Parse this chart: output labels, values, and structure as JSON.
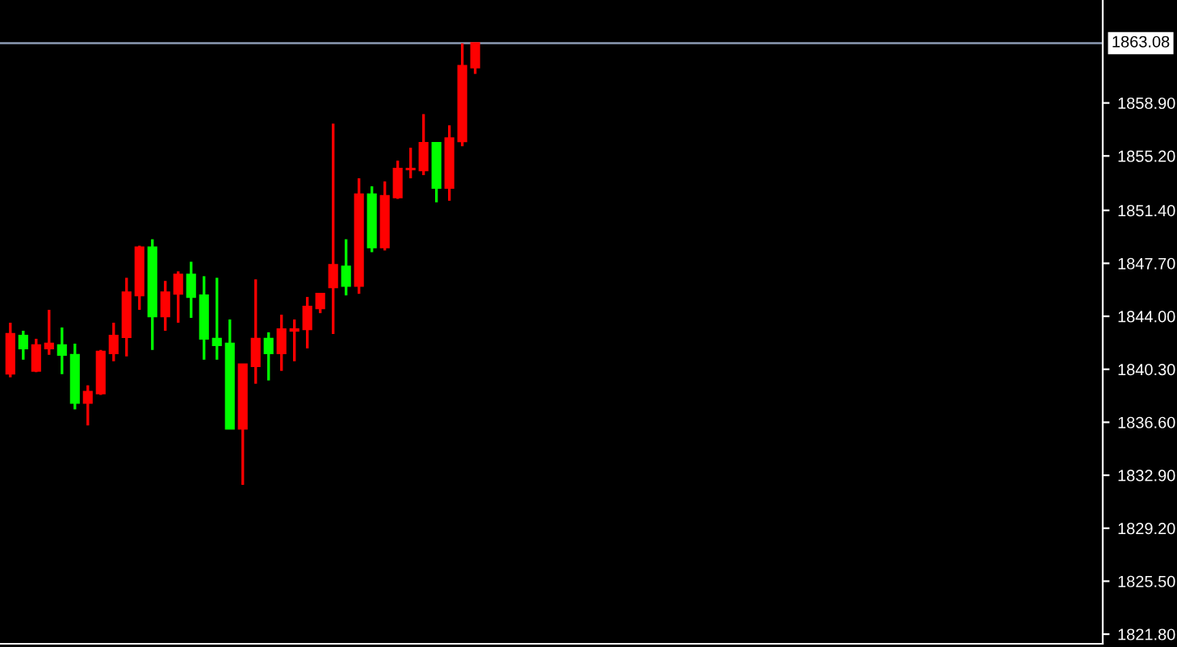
{
  "chart_data": {
    "type": "candlestick",
    "categories": [
      null,
      null,
      null,
      null,
      null,
      null,
      null,
      null,
      null,
      null,
      null,
      null,
      null,
      null,
      null,
      null,
      null,
      null,
      null,
      null,
      null,
      null,
      null,
      null,
      null,
      null,
      null,
      null,
      null,
      null,
      null,
      null,
      null,
      null,
      null,
      null,
      null,
      null,
      null,
      null,
      null,
      null,
      null,
      null,
      null,
      null,
      null,
      null,
      null,
      null,
      null,
      null,
      null,
      null,
      null,
      null,
      null,
      null,
      null,
      null,
      null,
      null,
      null,
      null,
      null,
      null,
      null,
      null,
      null,
      null,
      null,
      null,
      null,
      null,
      null,
      null,
      null,
      null,
      null,
      null,
      null,
      null,
      null,
      null,
      null
    ],
    "ohlc": [
      [
        1840.0,
        1843.55,
        1839.74,
        1842.77
      ],
      [
        1842.65,
        1842.99,
        1840.97,
        1841.76
      ],
      [
        1840.19,
        1842.43,
        1840.1,
        1841.98
      ],
      [
        1841.76,
        1844.45,
        1841.31,
        1842.09
      ],
      [
        1841.98,
        1843.22,
        1839.96,
        1841.31
      ],
      [
        1841.31,
        1842.09,
        1837.5,
        1837.95
      ],
      [
        1837.95,
        1839.18,
        1836.38,
        1838.73
      ],
      [
        1838.62,
        1841.65,
        1838.51,
        1841.53
      ],
      [
        1841.42,
        1843.55,
        1840.86,
        1842.65
      ],
      [
        1842.54,
        1846.69,
        1841.2,
        1845.68
      ],
      [
        1845.46,
        1848.93,
        1844.45,
        1848.82
      ],
      [
        1848.82,
        1849.38,
        1841.65,
        1844.0
      ],
      [
        1844.0,
        1846.47,
        1842.99,
        1845.68
      ],
      [
        1845.57,
        1847.14,
        1843.55,
        1846.91
      ],
      [
        1846.91,
        1847.81,
        1843.89,
        1845.35
      ],
      [
        1845.46,
        1846.8,
        1840.97,
        1842.43
      ],
      [
        1842.43,
        1846.69,
        1840.97,
        1841.98
      ],
      [
        1842.09,
        1843.78,
        1836.15,
        1836.15
      ],
      [
        1836.15,
        1840.64,
        1832.23,
        1840.64
      ],
      [
        1840.52,
        1846.58,
        1839.29,
        1842.43
      ],
      [
        1842.43,
        1842.88,
        1839.52,
        1841.42
      ],
      [
        1841.42,
        1844.11,
        1840.19,
        1843.1
      ],
      [
        1842.99,
        1843.78,
        1840.86,
        1843.1
      ],
      [
        1843.1,
        1845.35,
        1841.76,
        1844.67
      ],
      [
        1844.56,
        1845.57,
        1844.22,
        1845.57
      ],
      [
        1846.02,
        1857.45,
        1842.77,
        1847.59
      ],
      [
        1847.48,
        1849.38,
        1845.46,
        1846.13
      ],
      [
        1846.13,
        1853.64,
        1845.57,
        1852.52
      ],
      [
        1852.52,
        1853.08,
        1848.48,
        1848.82
      ],
      [
        1848.82,
        1853.42,
        1848.6,
        1852.41
      ],
      [
        1852.3,
        1854.87,
        1852.2,
        1854.31
      ],
      [
        1854.26,
        1855.77,
        1853.64,
        1854.31
      ],
      [
        1854.2,
        1858.12,
        1853.86,
        1856.11
      ],
      [
        1856.11,
        1856.11,
        1851.96,
        1852.97
      ],
      [
        1852.97,
        1857.34,
        1852.07,
        1856.44
      ],
      [
        1856.22,
        1863.06,
        1855.88,
        1861.49
      ],
      [
        1861.38,
        1863.08,
        1860.93,
        1863.08
      ],
      null,
      null,
      null,
      null,
      null,
      null,
      null,
      null,
      null,
      null,
      null,
      null,
      null,
      null,
      null,
      null,
      null,
      null,
      null,
      null,
      null,
      null,
      null,
      null,
      null,
      null,
      null,
      null,
      null,
      null,
      null,
      null,
      null,
      null,
      null,
      null,
      null,
      null,
      null,
      null,
      null,
      null,
      null,
      null,
      null,
      null,
      null,
      null
    ],
    "colors": [
      "#ff0000",
      "#00ff00",
      "#ff0000",
      "#ff0000",
      "#00ff00",
      "#00ff00",
      "#ff0000",
      "#ff0000",
      "#ff0000",
      "#ff0000",
      "#ff0000",
      "#00ff00",
      "#ff0000",
      "#ff0000",
      "#00ff00",
      "#00ff00",
      "#00ff00",
      "#00ff00",
      "#ff0000",
      "#ff0000",
      "#00ff00",
      "#ff0000",
      "#ff0000",
      "#ff0000",
      "#ff0000",
      "#ff0000",
      "#00ff00",
      "#ff0000",
      "#00ff00",
      "#ff0000",
      "#ff0000",
      "#ff0000",
      "#ff0000",
      "#00ff00",
      "#ff0000",
      "#ff0000",
      "#ff0000",
      null,
      null,
      null,
      null,
      null,
      null,
      null,
      null,
      null,
      null,
      null,
      null,
      null,
      null,
      null,
      null,
      null,
      null,
      null,
      null,
      null,
      null,
      null,
      null,
      null,
      null,
      null,
      null,
      null,
      null,
      null,
      null,
      null,
      null,
      null,
      null,
      null,
      null,
      null,
      null,
      null,
      null,
      null,
      null,
      null,
      null,
      null,
      null
    ],
    "ylim": [
      1821.13,
      1866.09
    ],
    "yticks": [
      {
        "value": 1821.8,
        "label": "1821.80"
      },
      {
        "value": 1825.5,
        "label": "1825.50"
      },
      {
        "value": 1829.2,
        "label": "1829.20"
      },
      {
        "value": 1832.9,
        "label": "1832.90"
      },
      {
        "value": 1836.6,
        "label": "1836.60"
      },
      {
        "value": 1840.3,
        "label": "1840.30"
      },
      {
        "value": 1844.0,
        "label": "1844.00"
      },
      {
        "value": 1847.7,
        "label": "1847.70"
      },
      {
        "value": 1851.4,
        "label": "1851.40"
      },
      {
        "value": 1855.2,
        "label": "1855.20"
      },
      {
        "value": 1858.9,
        "label": "1858.90"
      }
    ],
    "ref_lines": [
      {
        "axis": "y",
        "value": 1863.08,
        "label": "1863.08",
        "color": "#8c9bb4"
      }
    ],
    "grid": false
  }
}
